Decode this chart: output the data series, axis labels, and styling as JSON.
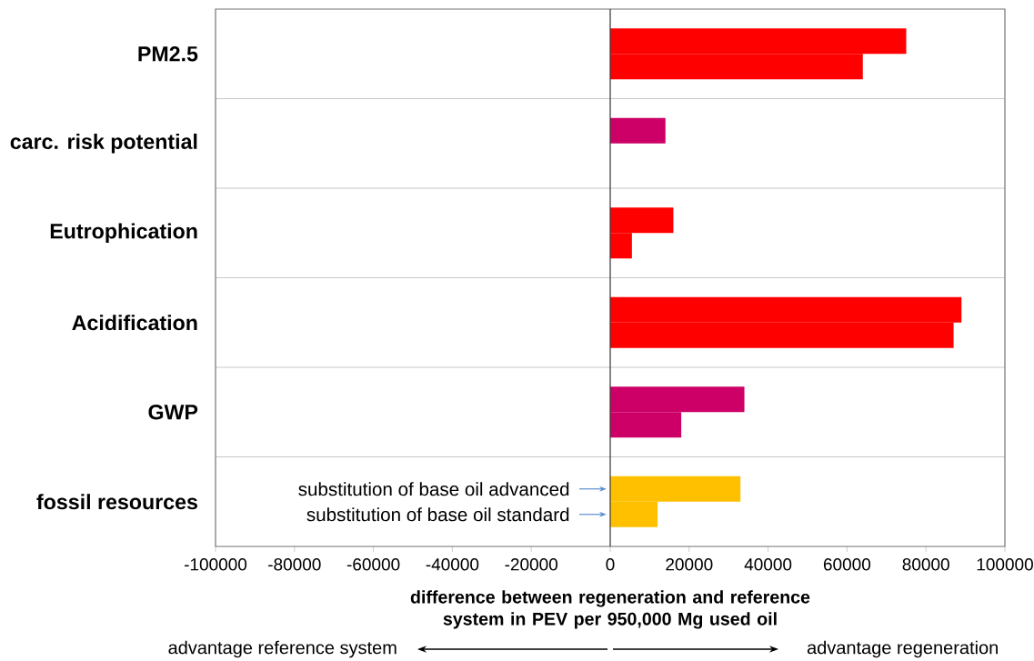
{
  "chart_data": {
    "type": "bar",
    "orientation": "horizontal",
    "grid": "y",
    "legend": false,
    "categories": [
      "PM2.5",
      "carc. risk potential",
      "Eutrophication",
      "Acidification",
      "GWP",
      "fossil resources"
    ],
    "series": [
      {
        "name": "substitution of base oil advanced",
        "colors": [
          "#ff0000",
          "#cc0066",
          "#ff0000",
          "#ff0000",
          "#cc0066",
          "#ffc000"
        ],
        "values": [
          75000,
          14000,
          16000,
          89000,
          34000,
          33000
        ]
      },
      {
        "name": "substitution of base oil standard",
        "colors": [
          "#ff0000",
          "#cc0066",
          "#ff0000",
          "#ff0000",
          "#cc0066",
          "#ffc000"
        ],
        "values": [
          64000,
          null,
          5500,
          87000,
          18000,
          12000
        ]
      }
    ],
    "xlim": [
      -100000,
      100000
    ],
    "xticks": [
      -100000,
      -80000,
      -60000,
      -40000,
      -20000,
      0,
      20000,
      40000,
      60000,
      80000,
      100000
    ],
    "xlabel": "difference between regeneration and reference system in PEV per 950,000 Mg used oil",
    "annotations": [
      "advantage reference system",
      "advantage regeneration"
    ]
  }
}
